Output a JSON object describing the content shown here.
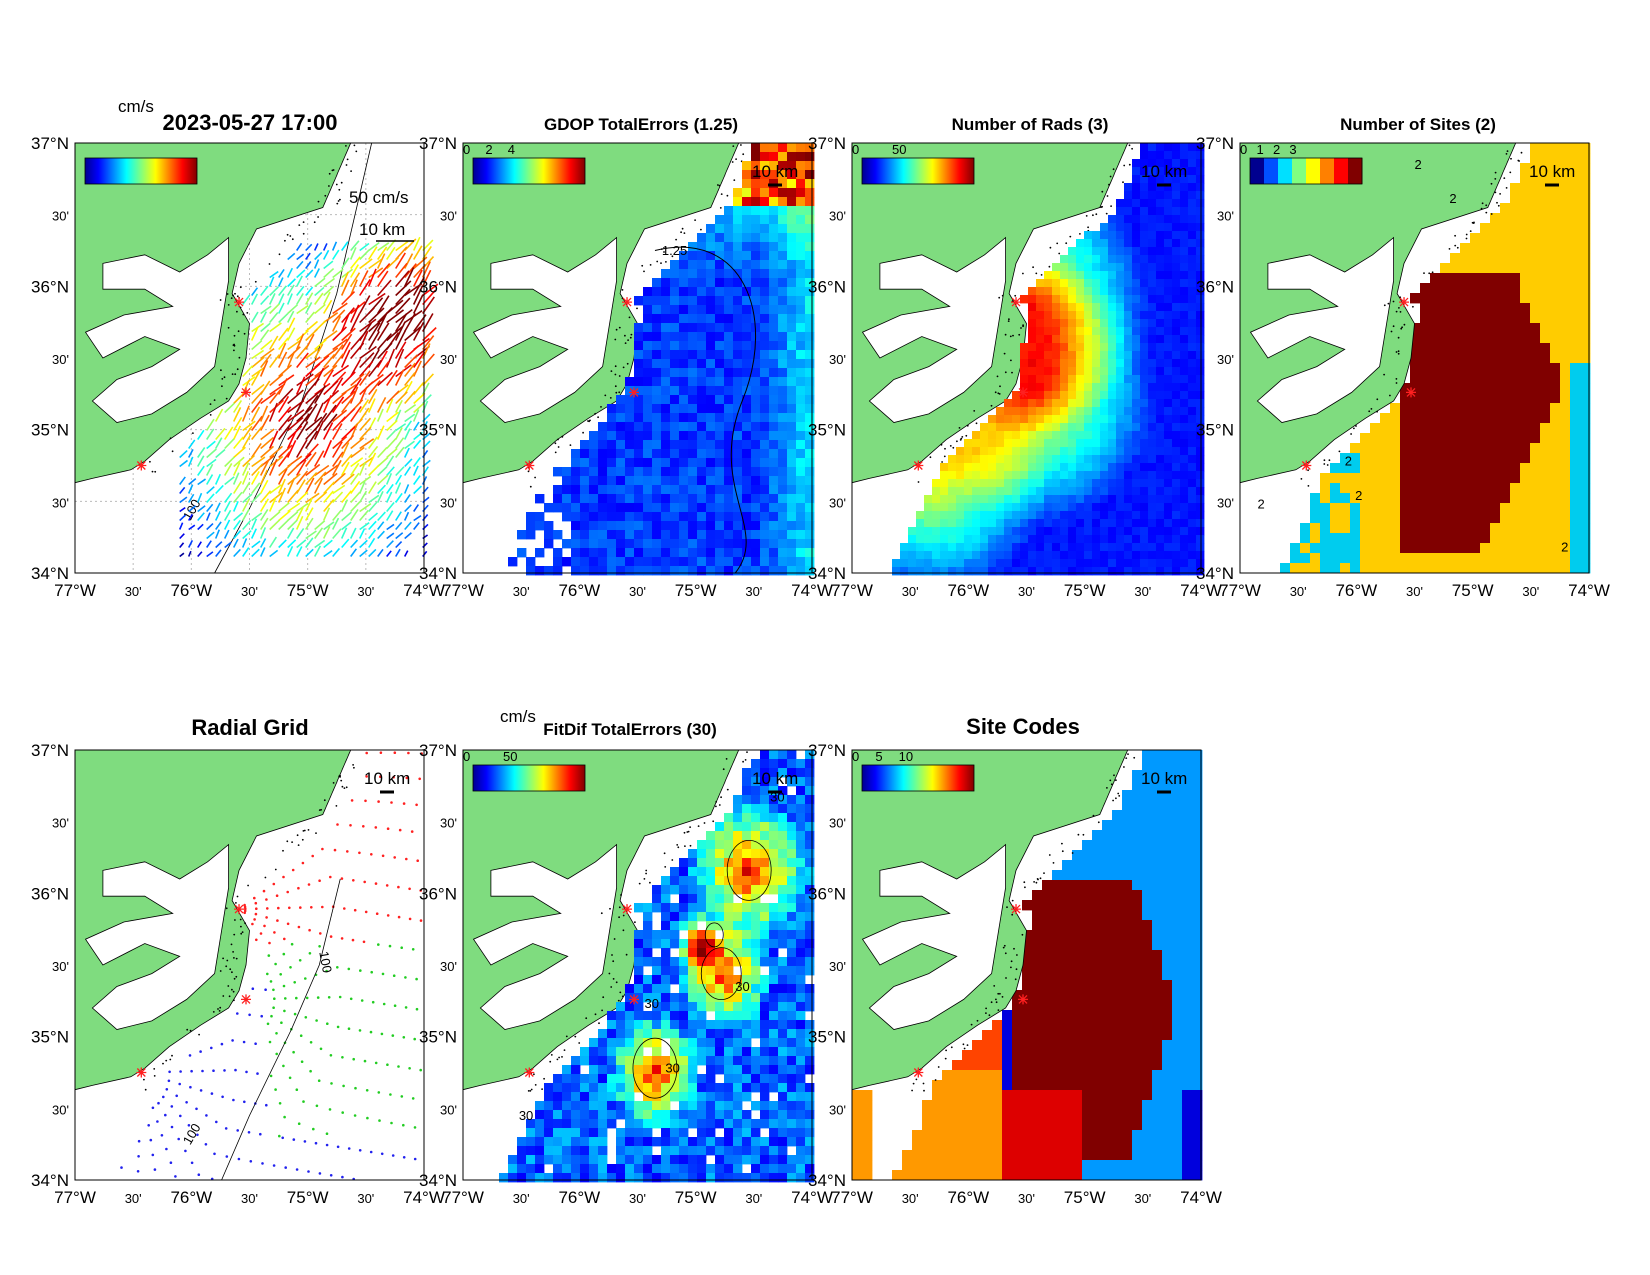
{
  "figure": {
    "timestamp": "2023-05-27 17:00",
    "axis_ticks": {
      "x": [
        "77°W",
        "30'",
        "76°W",
        "30'",
        "75°W",
        "30'",
        "74°W"
      ],
      "y": [
        "37°N",
        "30'",
        "36°N",
        "30'",
        "35°N",
        "30'",
        "34°N"
      ]
    },
    "scale_bar_label": "10 km",
    "site_marker_color": "#ff2020",
    "land_color": "#7fdc7f"
  },
  "chart_data": [
    {
      "id": "currents",
      "type": "quiver",
      "title": "2023-05-27 17:00",
      "colorbar_unit": "cm/s",
      "reference_arrow_label": "50 cm/s",
      "contour_label": "100",
      "xlim": [
        -77,
        -74
      ],
      "ylim": [
        34,
        37
      ],
      "grid": true
    },
    {
      "id": "gdop",
      "type": "heatmap",
      "title": "GDOP TotalErrors (1.25)",
      "colorbar_ticks": [
        "0",
        "2",
        "4"
      ],
      "contour_level": "1.25",
      "xlim": [
        -77,
        -74
      ],
      "ylim": [
        34,
        37
      ]
    },
    {
      "id": "nrads",
      "type": "heatmap",
      "title": "Number of Rads (3)",
      "colorbar_ticks": [
        "0",
        "50"
      ],
      "xlim": [
        -77,
        -74
      ],
      "ylim": [
        34,
        37
      ]
    },
    {
      "id": "nsites",
      "type": "heatmap",
      "title": "Number of Sites (2)",
      "colorbar_ticks": [
        "0",
        "1",
        "2",
        "3"
      ],
      "contour_level": "2",
      "xlim": [
        -77,
        -74
      ],
      "ylim": [
        34,
        37
      ]
    },
    {
      "id": "radgrid",
      "type": "scatter",
      "title": "Radial Grid",
      "series_colors": [
        "#ff2020",
        "#22cc22",
        "#2222ee"
      ],
      "contour_label": "100",
      "xlim": [
        -77,
        -74
      ],
      "ylim": [
        34,
        37
      ]
    },
    {
      "id": "fitdif",
      "type": "heatmap",
      "title": "FitDif TotalErrors (30)",
      "colorbar_unit": "cm/s",
      "colorbar_ticks": [
        "0",
        "50"
      ],
      "contour_level": "30",
      "xlim": [
        -77,
        -74
      ],
      "ylim": [
        34,
        37
      ]
    },
    {
      "id": "sitecodes",
      "type": "heatmap",
      "title": "Site Codes",
      "colorbar_ticks": [
        "0",
        "5",
        "10"
      ],
      "xlim": [
        -77,
        -74
      ],
      "ylim": [
        34,
        37
      ]
    }
  ]
}
